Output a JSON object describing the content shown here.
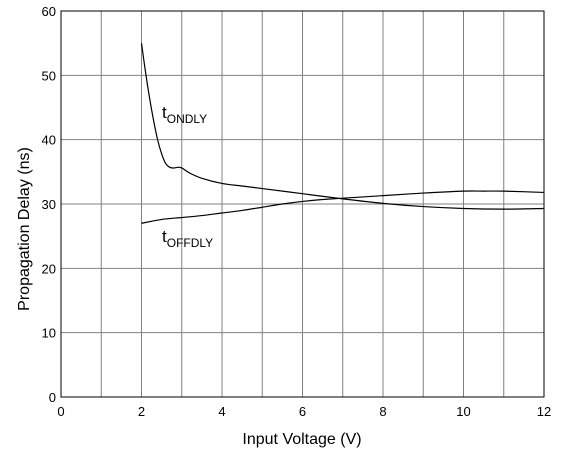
{
  "chart_data": {
    "type": "line",
    "title": "",
    "xlabel": "Input Voltage (V)",
    "ylabel": "Propagation Delay (ns)",
    "xlim": [
      0,
      12
    ],
    "ylim": [
      0,
      60
    ],
    "xticks": [
      0,
      2,
      4,
      6,
      8,
      10,
      12
    ],
    "yticks": [
      0,
      10,
      20,
      30,
      40,
      50,
      60
    ],
    "grid": true,
    "series": [
      {
        "label_main": "t",
        "label_sub": "ONDLY",
        "color": "#000000",
        "x": [
          2.0,
          2.1,
          2.2,
          2.3,
          2.4,
          2.5,
          2.6,
          2.7,
          2.8,
          2.9,
          3.0,
          3.2,
          3.5,
          4.0,
          4.5,
          5.0,
          6.0,
          7.0,
          8.0,
          9.0,
          10.0,
          11.0,
          12.0
        ],
        "y": [
          55.0,
          50.5,
          46.5,
          43.0,
          40.0,
          37.8,
          36.3,
          35.7,
          35.6,
          35.7,
          35.6,
          34.8,
          34.0,
          33.2,
          32.8,
          32.4,
          31.6,
          30.8,
          30.1,
          29.6,
          29.3,
          29.2,
          29.3
        ]
      },
      {
        "label_main": "t",
        "label_sub": "OFFDLY",
        "color": "#000000",
        "x": [
          2.0,
          2.5,
          3.0,
          3.5,
          4.0,
          4.5,
          5.0,
          5.5,
          6.0,
          6.5,
          7.0,
          7.5,
          8.0,
          9.0,
          10.0,
          10.5,
          11.0,
          12.0
        ],
        "y": [
          27.0,
          27.6,
          27.9,
          28.2,
          28.6,
          29.0,
          29.5,
          30.0,
          30.4,
          30.7,
          30.9,
          31.1,
          31.3,
          31.7,
          32.0,
          32.0,
          32.0,
          31.8
        ]
      }
    ]
  }
}
